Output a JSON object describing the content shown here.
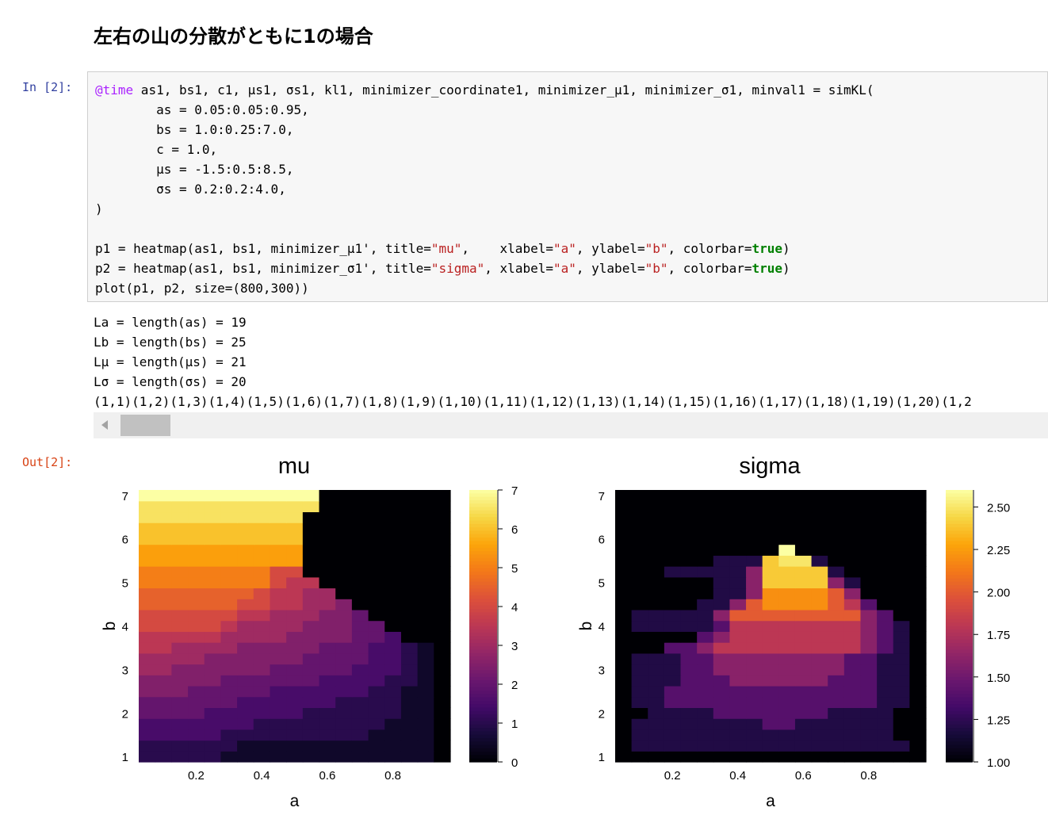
{
  "heading": "左右の山の分散がともに1の場合",
  "cell": {
    "in_prompt": "In [2]:",
    "out_prompt": "Out[2]:",
    "code": [
      [
        {
          "t": "@time",
          "c": "kw"
        },
        {
          "t": " as1, bs1, c1, μs1, σs1, kl1, minimizer_coordinate1, minimizer_μ1, minimizer_σ1, minval1 = simKL("
        }
      ],
      [
        {
          "t": "        as = 0.05:0.05:0.95,"
        }
      ],
      [
        {
          "t": "        bs = 1.0:0.25:7.0,"
        }
      ],
      [
        {
          "t": "        c = 1.0,"
        }
      ],
      [
        {
          "t": "        μs = -1.5:0.5:8.5,"
        }
      ],
      [
        {
          "t": "        σs = 0.2:0.2:4.0,"
        }
      ],
      [
        {
          "t": ")"
        }
      ],
      [
        {
          "t": ""
        }
      ],
      [
        {
          "t": "p1 = heatmap(as1, bs1, minimizer_μ1', title="
        },
        {
          "t": "\"mu\"",
          "c": "str"
        },
        {
          "t": ",    xlabel="
        },
        {
          "t": "\"a\"",
          "c": "str"
        },
        {
          "t": ", ylabel="
        },
        {
          "t": "\"b\"",
          "c": "str"
        },
        {
          "t": ", colorbar="
        },
        {
          "t": "true",
          "c": "bool"
        },
        {
          "t": ")"
        }
      ],
      [
        {
          "t": "p2 = heatmap(as1, bs1, minimizer_σ1', title="
        },
        {
          "t": "\"sigma\"",
          "c": "str"
        },
        {
          "t": ", xlabel="
        },
        {
          "t": "\"a\"",
          "c": "str"
        },
        {
          "t": ", ylabel="
        },
        {
          "t": "\"b\"",
          "c": "str"
        },
        {
          "t": ", colorbar="
        },
        {
          "t": "true",
          "c": "bool"
        },
        {
          "t": ")"
        }
      ],
      [
        {
          "t": "plot(p1, p2, size=(800,300))"
        }
      ]
    ],
    "stdout": [
      "La = length(as) = 19",
      "Lb = length(bs) = 25",
      "Lμ = length(μs) = 21",
      "Lσ = length(σs) = 20",
      "(1,1)(1,2)(1,3)(1,4)(1,5)(1,6)(1,7)(1,8)(1,9)(1,10)(1,11)(1,12)(1,13)(1,14)(1,15)(1,16)(1,17)(1,18)(1,19)(1,20)(1,2"
    ]
  },
  "chart_data": [
    {
      "type": "heatmap",
      "title": "mu",
      "xlabel": "a",
      "ylabel": "b",
      "x": [
        0.05,
        0.1,
        0.15,
        0.2,
        0.25,
        0.3,
        0.35,
        0.4,
        0.45,
        0.5,
        0.55,
        0.6,
        0.65,
        0.7,
        0.75,
        0.8,
        0.85,
        0.9,
        0.95
      ],
      "y": [
        1.0,
        1.25,
        1.5,
        1.75,
        2.0,
        2.25,
        2.5,
        2.75,
        3.0,
        3.25,
        3.5,
        3.75,
        4.0,
        4.25,
        4.5,
        4.75,
        5.0,
        5.25,
        5.5,
        5.75,
        6.0,
        6.25,
        6.5,
        6.75,
        7.0
      ],
      "x_ticks": [
        0.2,
        0.4,
        0.6,
        0.8
      ],
      "y_ticks": [
        1,
        2,
        3,
        4,
        5,
        6,
        7
      ],
      "colorbar_ticks": [
        "0",
        "1",
        "2",
        "3",
        "4",
        "5",
        "6",
        "7"
      ],
      "clim": [
        0,
        7
      ],
      "colormap": "inferno",
      "z": [
        [
          1.0,
          1.0,
          1.0,
          1.0,
          1.0,
          0.5,
          0.5,
          0.5,
          0.5,
          0.5,
          0.5,
          0.5,
          0.5,
          0.5,
          0.5,
          0.5,
          0.5,
          0.5,
          0
        ],
        [
          1.0,
          1.0,
          1.0,
          1.0,
          1.0,
          1.0,
          0.5,
          0.5,
          0.5,
          0.5,
          0.5,
          0.5,
          0.5,
          0.5,
          0.5,
          0.5,
          0.5,
          0.5,
          0
        ],
        [
          1.5,
          1.5,
          1.5,
          1.5,
          1.5,
          1.0,
          1.0,
          1.0,
          1.0,
          1.0,
          1.0,
          1.0,
          1.0,
          1.0,
          0.5,
          0.5,
          0.5,
          0.5,
          0
        ],
        [
          1.5,
          1.5,
          1.5,
          1.5,
          1.5,
          1.5,
          1.5,
          1.0,
          1.0,
          1.0,
          1.0,
          1.0,
          1.0,
          1.0,
          1.0,
          0.5,
          0.5,
          0.5,
          0
        ],
        [
          2.0,
          2.0,
          2.0,
          2.0,
          1.5,
          1.5,
          1.5,
          1.5,
          1.5,
          1.5,
          1.0,
          1.0,
          1.0,
          1.0,
          1.0,
          1.0,
          0.5,
          0.5,
          0
        ],
        [
          2.0,
          2.0,
          2.0,
          2.0,
          2.0,
          2.0,
          1.5,
          1.5,
          1.5,
          1.5,
          1.5,
          1.5,
          1.0,
          1.0,
          1.0,
          1.0,
          0.5,
          0.5,
          0
        ],
        [
          2.5,
          2.5,
          2.5,
          2.0,
          2.0,
          2.0,
          2.0,
          2.0,
          1.5,
          1.5,
          1.5,
          1.5,
          1.5,
          1.5,
          1.0,
          1.0,
          0.5,
          0.5,
          0
        ],
        [
          2.5,
          2.5,
          2.5,
          2.5,
          2.5,
          2.0,
          2.0,
          2.0,
          2.0,
          2.0,
          2.0,
          1.5,
          1.5,
          1.5,
          1.5,
          1.0,
          1.0,
          0.5,
          0
        ],
        [
          3.0,
          3.0,
          2.5,
          2.5,
          2.5,
          2.5,
          2.5,
          2.5,
          2.0,
          2.0,
          2.0,
          2.0,
          2.0,
          1.5,
          1.5,
          1.5,
          1.0,
          0.5,
          0
        ],
        [
          3.0,
          3.0,
          3.0,
          3.0,
          2.5,
          2.5,
          2.5,
          2.5,
          2.5,
          2.5,
          2.0,
          2.0,
          2.0,
          2.0,
          1.5,
          1.5,
          1.0,
          0.5,
          0
        ],
        [
          3.5,
          3.5,
          3.0,
          3.0,
          3.0,
          3.0,
          2.5,
          2.5,
          2.5,
          2.5,
          2.5,
          2.0,
          2.0,
          2.0,
          1.5,
          1.5,
          1.0,
          0.5,
          0
        ],
        [
          3.5,
          3.5,
          3.5,
          3.5,
          3.5,
          3.0,
          3.0,
          3.0,
          3.0,
          2.5,
          2.5,
          2.5,
          2.5,
          2.0,
          2.0,
          1.5,
          0,
          0,
          0
        ],
        [
          4.0,
          4.0,
          4.0,
          4.0,
          4.0,
          3.5,
          3.0,
          3.0,
          3.0,
          3.0,
          2.5,
          2.5,
          2.5,
          2.0,
          2.0,
          0,
          0,
          0,
          0
        ],
        [
          4.0,
          4.0,
          4.0,
          4.0,
          4.0,
          4.0,
          3.5,
          3.5,
          3.0,
          3.0,
          3.0,
          2.5,
          2.5,
          2.0,
          0,
          0,
          0,
          0,
          0
        ],
        [
          4.5,
          4.5,
          4.5,
          4.5,
          4.5,
          4.5,
          4.0,
          4.0,
          3.5,
          3.5,
          3.0,
          3.0,
          2.5,
          0,
          0,
          0,
          0,
          0,
          0
        ],
        [
          4.5,
          4.5,
          4.5,
          4.5,
          4.5,
          4.5,
          4.5,
          4.0,
          3.5,
          3.5,
          3.0,
          3.0,
          0,
          0,
          0,
          0,
          0,
          0,
          0
        ],
        [
          5.0,
          5.0,
          5.0,
          5.0,
          5.0,
          5.0,
          5.0,
          5.0,
          4.0,
          3.5,
          3.5,
          0,
          0,
          0,
          0,
          0,
          0,
          0,
          0
        ],
        [
          5.0,
          5.0,
          5.0,
          5.0,
          5.0,
          5.0,
          5.0,
          5.0,
          4.0,
          4.0,
          0,
          0,
          0,
          0,
          0,
          0,
          0,
          0,
          0
        ],
        [
          5.5,
          5.5,
          5.5,
          5.5,
          5.5,
          5.5,
          5.5,
          5.5,
          5.5,
          5.5,
          0,
          0,
          0,
          0,
          0,
          0,
          0,
          0,
          0
        ],
        [
          5.5,
          5.5,
          5.5,
          5.5,
          5.5,
          5.5,
          5.5,
          5.5,
          5.5,
          5.5,
          0,
          0,
          0,
          0,
          0,
          0,
          0,
          0,
          0
        ],
        [
          6.0,
          6.0,
          6.0,
          6.0,
          6.0,
          6.0,
          6.0,
          6.0,
          6.0,
          6.0,
          0,
          0,
          0,
          0,
          0,
          0,
          0,
          0,
          0
        ],
        [
          6.0,
          6.0,
          6.0,
          6.0,
          6.0,
          6.0,
          6.0,
          6.0,
          6.0,
          6.0,
          0,
          0,
          0,
          0,
          0,
          0,
          0,
          0,
          0
        ],
        [
          6.5,
          6.5,
          6.5,
          6.5,
          6.5,
          6.5,
          6.5,
          6.5,
          6.5,
          6.5,
          0,
          0,
          0,
          0,
          0,
          0,
          0,
          0,
          0
        ],
        [
          6.5,
          6.5,
          6.5,
          6.5,
          6.5,
          6.5,
          6.5,
          6.5,
          6.5,
          6.5,
          6.5,
          0,
          0,
          0,
          0,
          0,
          0,
          0,
          0
        ],
        [
          7.0,
          7.0,
          7.0,
          7.0,
          7.0,
          7.0,
          7.0,
          7.0,
          7.0,
          7.0,
          7.0,
          0,
          0,
          0,
          0,
          0,
          0,
          0,
          0
        ]
      ]
    },
    {
      "type": "heatmap",
      "title": "sigma",
      "xlabel": "a",
      "ylabel": "b",
      "x": [
        0.05,
        0.1,
        0.15,
        0.2,
        0.25,
        0.3,
        0.35,
        0.4,
        0.45,
        0.5,
        0.55,
        0.6,
        0.65,
        0.7,
        0.75,
        0.8,
        0.85,
        0.9,
        0.95
      ],
      "y": [
        1.0,
        1.25,
        1.5,
        1.75,
        2.0,
        2.25,
        2.5,
        2.75,
        3.0,
        3.25,
        3.5,
        3.75,
        4.0,
        4.25,
        4.5,
        4.75,
        5.0,
        5.25,
        5.5,
        5.75,
        6.0,
        6.25,
        6.5,
        6.75,
        7.0
      ],
      "x_ticks": [
        0.2,
        0.4,
        0.6,
        0.8
      ],
      "y_ticks": [
        1,
        2,
        3,
        4,
        5,
        6,
        7
      ],
      "colorbar_ticks": [
        "1.00",
        "1.25",
        "1.50",
        "1.75",
        "2.00",
        "2.25",
        "2.50"
      ],
      "clim": [
        1.0,
        2.6
      ],
      "colormap": "inferno",
      "z": [
        [
          1.0,
          1.0,
          1.0,
          1.0,
          1.0,
          1.0,
          1.0,
          1.0,
          1.0,
          1.0,
          1.0,
          1.0,
          1.0,
          1.0,
          1.0,
          1.0,
          1.0,
          1.0,
          1.0
        ],
        [
          1.0,
          1.2,
          1.2,
          1.2,
          1.2,
          1.2,
          1.2,
          1.2,
          1.2,
          1.2,
          1.2,
          1.2,
          1.2,
          1.2,
          1.2,
          1.2,
          1.2,
          1.2,
          1.0
        ],
        [
          1.0,
          1.2,
          1.2,
          1.2,
          1.2,
          1.2,
          1.2,
          1.2,
          1.2,
          1.2,
          1.2,
          1.2,
          1.2,
          1.2,
          1.2,
          1.2,
          1.2,
          1.0,
          1.0
        ],
        [
          1.0,
          1.2,
          1.2,
          1.2,
          1.2,
          1.2,
          1.2,
          1.2,
          1.2,
          1.4,
          1.4,
          1.2,
          1.2,
          1.2,
          1.2,
          1.2,
          1.2,
          1.0,
          1.0
        ],
        [
          1.0,
          1.0,
          1.2,
          1.2,
          1.2,
          1.2,
          1.4,
          1.4,
          1.4,
          1.4,
          1.4,
          1.4,
          1.4,
          1.2,
          1.2,
          1.2,
          1.2,
          1.0,
          1.0
        ],
        [
          1.0,
          1.2,
          1.2,
          1.4,
          1.4,
          1.4,
          1.4,
          1.4,
          1.4,
          1.4,
          1.4,
          1.4,
          1.4,
          1.4,
          1.4,
          1.4,
          1.2,
          1.2,
          1.0
        ],
        [
          1.0,
          1.2,
          1.2,
          1.4,
          1.4,
          1.4,
          1.4,
          1.4,
          1.4,
          1.4,
          1.4,
          1.4,
          1.4,
          1.4,
          1.4,
          1.4,
          1.2,
          1.2,
          1.0
        ],
        [
          1.0,
          1.2,
          1.2,
          1.2,
          1.4,
          1.4,
          1.4,
          1.6,
          1.6,
          1.6,
          1.6,
          1.6,
          1.6,
          1.4,
          1.4,
          1.4,
          1.2,
          1.2,
          1.0
        ],
        [
          1.0,
          1.2,
          1.2,
          1.2,
          1.4,
          1.4,
          1.6,
          1.6,
          1.6,
          1.6,
          1.6,
          1.6,
          1.6,
          1.6,
          1.4,
          1.4,
          1.2,
          1.2,
          1.0
        ],
        [
          1.0,
          1.2,
          1.2,
          1.2,
          1.4,
          1.4,
          1.6,
          1.6,
          1.6,
          1.6,
          1.6,
          1.6,
          1.6,
          1.6,
          1.4,
          1.4,
          1.2,
          1.2,
          1.0
        ],
        [
          1.0,
          1.0,
          1.0,
          1.4,
          1.4,
          1.6,
          1.8,
          1.8,
          1.8,
          1.8,
          1.8,
          1.8,
          1.8,
          1.8,
          1.8,
          1.6,
          1.4,
          1.2,
          1.0
        ],
        [
          1.0,
          1.0,
          1.0,
          1.0,
          1.0,
          1.4,
          1.6,
          1.8,
          1.8,
          1.8,
          1.8,
          1.8,
          1.8,
          1.8,
          1.8,
          1.6,
          1.4,
          1.2,
          1.0
        ],
        [
          1.0,
          1.2,
          1.2,
          1.2,
          1.2,
          1.2,
          1.4,
          1.8,
          1.8,
          1.8,
          1.8,
          1.8,
          1.8,
          1.8,
          1.8,
          1.6,
          1.4,
          1.2,
          1.0
        ],
        [
          1.0,
          1.2,
          1.2,
          1.2,
          1.2,
          1.2,
          1.6,
          2.0,
          2.0,
          2.0,
          2.0,
          2.0,
          2.0,
          2.0,
          2.0,
          1.6,
          1.4,
          1.0,
          1.0
        ],
        [
          1.0,
          1.0,
          1.0,
          1.0,
          1.0,
          1.2,
          1.2,
          1.6,
          2.0,
          2.2,
          2.2,
          2.2,
          2.2,
          2.0,
          1.8,
          1.4,
          1.0,
          1.0,
          1.0
        ],
        [
          1.0,
          1.0,
          1.0,
          1.0,
          1.0,
          1.0,
          1.2,
          1.2,
          1.6,
          2.2,
          2.2,
          2.2,
          2.2,
          2.0,
          1.6,
          1.0,
          1.0,
          1.0,
          1.0
        ],
        [
          1.0,
          1.0,
          1.0,
          1.0,
          1.0,
          1.0,
          1.2,
          1.2,
          1.6,
          2.4,
          2.4,
          2.4,
          2.4,
          1.6,
          1.2,
          1.0,
          1.0,
          1.0,
          1.0
        ],
        [
          1.0,
          1.0,
          1.0,
          1.2,
          1.2,
          1.2,
          1.2,
          1.2,
          1.6,
          2.4,
          2.4,
          2.4,
          2.4,
          1.2,
          1.0,
          1.0,
          1.0,
          1.0,
          1.0
        ],
        [
          1.0,
          1.0,
          1.0,
          1.0,
          1.0,
          1.0,
          1.2,
          1.2,
          1.2,
          2.4,
          2.5,
          2.5,
          1.2,
          1.0,
          1.0,
          1.0,
          1.0,
          1.0,
          1.0
        ],
        [
          1.0,
          1.0,
          1.0,
          1.0,
          1.0,
          1.0,
          1.0,
          1.0,
          1.0,
          1.0,
          2.6,
          1.0,
          1.0,
          1.0,
          1.0,
          1.0,
          1.0,
          1.0,
          1.0
        ],
        [
          1.0,
          1.0,
          1.0,
          1.0,
          1.0,
          1.0,
          1.0,
          1.0,
          1.0,
          1.0,
          1.0,
          1.0,
          1.0,
          1.0,
          1.0,
          1.0,
          1.0,
          1.0,
          1.0
        ],
        [
          1.0,
          1.0,
          1.0,
          1.0,
          1.0,
          1.0,
          1.0,
          1.0,
          1.0,
          1.0,
          1.0,
          1.0,
          1.0,
          1.0,
          1.0,
          1.0,
          1.0,
          1.0,
          1.0
        ],
        [
          1.0,
          1.0,
          1.0,
          1.0,
          1.0,
          1.0,
          1.0,
          1.0,
          1.0,
          1.0,
          1.0,
          1.0,
          1.0,
          1.0,
          1.0,
          1.0,
          1.0,
          1.0,
          1.0
        ],
        [
          1.0,
          1.0,
          1.0,
          1.0,
          1.0,
          1.0,
          1.0,
          1.0,
          1.0,
          1.0,
          1.0,
          1.0,
          1.0,
          1.0,
          1.0,
          1.0,
          1.0,
          1.0,
          1.0
        ],
        [
          1.0,
          1.0,
          1.0,
          1.0,
          1.0,
          1.0,
          1.0,
          1.0,
          1.0,
          1.0,
          1.0,
          1.0,
          1.0,
          1.0,
          1.0,
          1.0,
          1.0,
          1.0,
          1.0
        ]
      ]
    }
  ]
}
